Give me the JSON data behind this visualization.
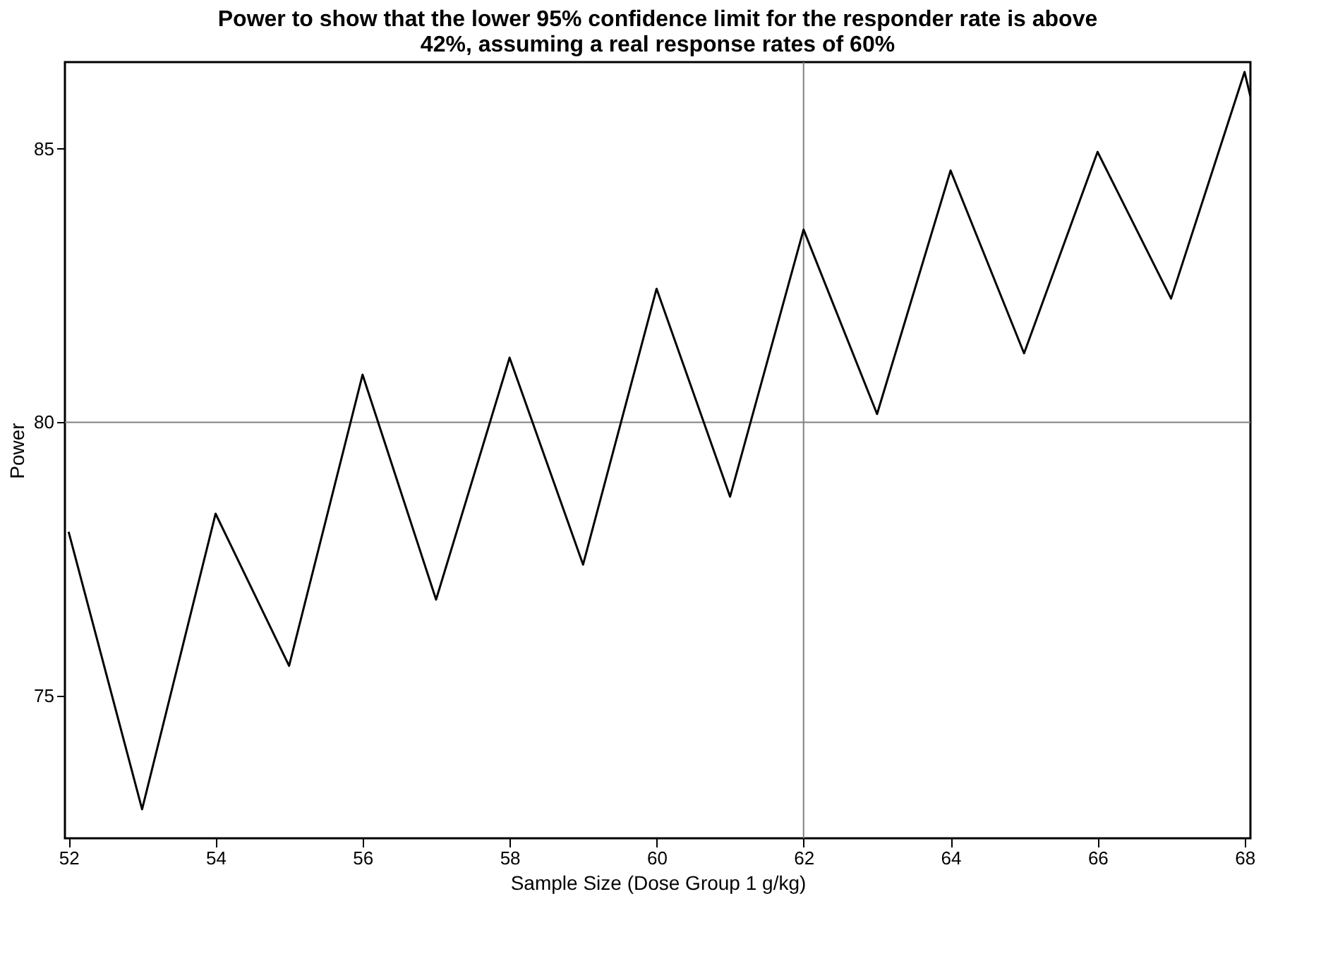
{
  "chart_data": {
    "type": "line",
    "title": [
      "Power to show that the lower 95% confidence limit for the responder rate is above",
      "42%, assuming a real response rates of 60%"
    ],
    "xlabel": "Sample Size (Dose Group 1 g/kg)",
    "ylabel": "Power",
    "x": [
      52,
      53,
      54,
      55,
      56,
      57,
      58,
      59,
      60,
      61,
      62,
      63,
      64,
      65,
      66,
      67,
      68,
      68.08
    ],
    "series": [
      {
        "color": "#000000",
        "values": [
          78.0,
          72.93,
          78.33,
          75.55,
          80.87,
          76.76,
          81.18,
          77.4,
          82.44,
          78.64,
          83.52,
          80.15,
          84.6,
          81.26,
          84.94,
          82.26,
          86.4,
          85.95
        ]
      }
    ],
    "xlim": [
      51.95,
      68.08
    ],
    "ylim": [
      72.4,
      86.58
    ],
    "xticks": [
      52,
      54,
      56,
      58,
      60,
      62,
      64,
      66,
      68
    ],
    "yticks": [
      75,
      80,
      85
    ],
    "ref_lines": [
      {
        "axis": "x",
        "value": 62,
        "color": "#808080"
      },
      {
        "axis": "y",
        "value": 80,
        "color": "#808080"
      }
    ],
    "grid": false,
    "marker": "none",
    "line_style": "solid"
  }
}
